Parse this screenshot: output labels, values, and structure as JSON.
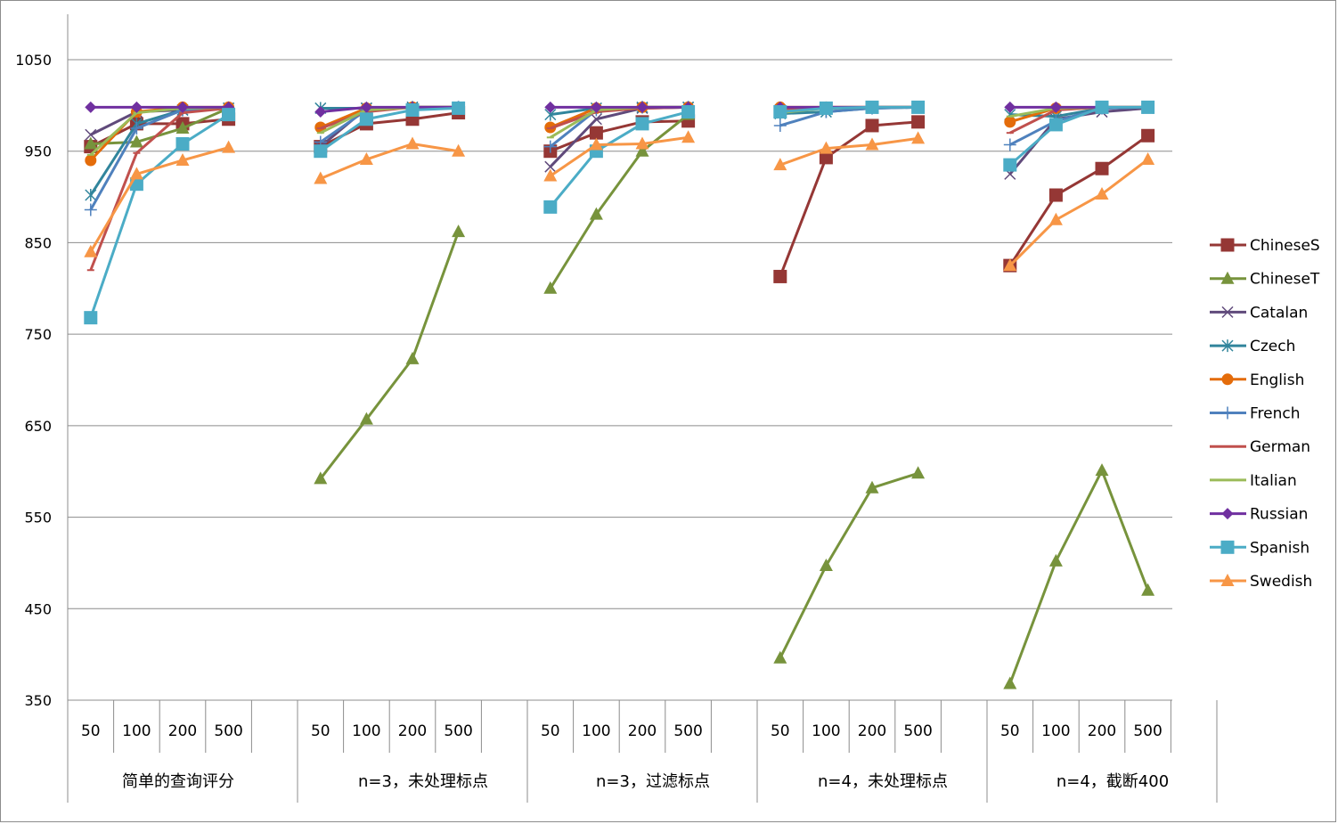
{
  "chart_data": {
    "type": "line",
    "title": "",
    "xlabel": "",
    "ylabel": "",
    "ylim": [
      350,
      1050
    ],
    "yticks": [
      350,
      450,
      550,
      650,
      750,
      850,
      950,
      1050
    ],
    "grid": true,
    "legend_position": "right",
    "groups": [
      "简单的查询评分",
      "n=3，未处理标点",
      "n=3，过滤标点",
      "n=4，未处理标点",
      "n=4，截断400"
    ],
    "sub_categories": [
      "50",
      "100",
      "200",
      "500"
    ],
    "series": [
      {
        "name": "ChineseS",
        "color": "#953735",
        "marker": "square",
        "values": [
          [
            955,
            980,
            980,
            985
          ],
          [
            955,
            980,
            985,
            992
          ],
          [
            950,
            970,
            982,
            983
          ],
          [
            813,
            943,
            978,
            982
          ],
          [
            825,
            902,
            931,
            967
          ]
        ]
      },
      {
        "name": "ChineseT",
        "color": "#77933c",
        "marker": "triangle",
        "values": [
          [
            958,
            960,
            975,
            997
          ],
          [
            592,
            657,
            723,
            862
          ],
          [
            800,
            881,
            950,
            990
          ],
          [
            396,
            497,
            582,
            598
          ],
          [
            368,
            502,
            601,
            470
          ]
        ]
      },
      {
        "name": "Catalan",
        "color": "#604a7b",
        "marker": "x",
        "values": [
          [
            968,
            993,
            995,
            997
          ],
          [
            955,
            997,
            998,
            998
          ],
          [
            933,
            985,
            997,
            998
          ],
          [
            995,
            997,
            998,
            998
          ],
          [
            925,
            985,
            993,
            997
          ]
        ]
      },
      {
        "name": "Czech",
        "color": "#31859c",
        "marker": "asterisk",
        "values": [
          [
            902,
            980,
            995,
            997
          ],
          [
            997,
            997,
            998,
            998
          ],
          [
            990,
            997,
            998,
            998
          ],
          [
            991,
            993,
            997,
            998
          ],
          [
            990,
            988,
            997,
            998
          ]
        ]
      },
      {
        "name": "English",
        "color": "#e46c0a",
        "marker": "circle",
        "values": [
          [
            940,
            993,
            998,
            998
          ],
          [
            976,
            997,
            998,
            998
          ],
          [
            976,
            997,
            998,
            998
          ],
          [
            998,
            998,
            998,
            998
          ],
          [
            982,
            997,
            998,
            998
          ]
        ]
      },
      {
        "name": "French",
        "color": "#4f81bd",
        "marker": "plus",
        "values": [
          [
            886,
            975,
            995,
            997
          ],
          [
            960,
            995,
            998,
            998
          ],
          [
            955,
            995,
            998,
            998
          ],
          [
            978,
            993,
            997,
            998
          ],
          [
            957,
            983,
            997,
            998
          ]
        ]
      },
      {
        "name": "German",
        "color": "#c0504d",
        "marker": "dash",
        "values": [
          [
            820,
            948,
            992,
            997
          ],
          [
            975,
            993,
            998,
            998
          ],
          [
            975,
            993,
            997,
            998
          ],
          [
            996,
            998,
            998,
            998
          ],
          [
            970,
            995,
            998,
            998
          ]
        ]
      },
      {
        "name": "Italian",
        "color": "#9bbb59",
        "marker": "dash",
        "values": [
          [
            946,
            992,
            997,
            998
          ],
          [
            970,
            995,
            998,
            998
          ],
          [
            965,
            995,
            998,
            998
          ],
          [
            992,
            997,
            998,
            998
          ],
          [
            988,
            997,
            998,
            998
          ]
        ]
      },
      {
        "name": "Russian",
        "color": "#7030a0",
        "marker": "diamond",
        "values": [
          [
            998,
            998,
            998,
            998
          ],
          [
            993,
            998,
            998,
            998
          ],
          [
            998,
            998,
            998,
            998
          ],
          [
            998,
            998,
            998,
            998
          ],
          [
            998,
            998,
            998,
            998
          ]
        ]
      },
      {
        "name": "Spanish",
        "color": "#4bacc6",
        "marker": "square",
        "values": [
          [
            768,
            914,
            958,
            990
          ],
          [
            950,
            985,
            995,
            997
          ],
          [
            889,
            950,
            980,
            993
          ],
          [
            993,
            997,
            998,
            998
          ],
          [
            935,
            979,
            998,
            998
          ]
        ]
      },
      {
        "name": "Swedish",
        "color": "#f79646",
        "marker": "triangle",
        "values": [
          [
            840,
            925,
            940,
            954
          ],
          [
            920,
            941,
            958,
            950
          ],
          [
            923,
            957,
            958,
            965
          ],
          [
            935,
            953,
            957,
            964
          ],
          [
            825,
            875,
            903,
            941
          ]
        ]
      }
    ]
  }
}
